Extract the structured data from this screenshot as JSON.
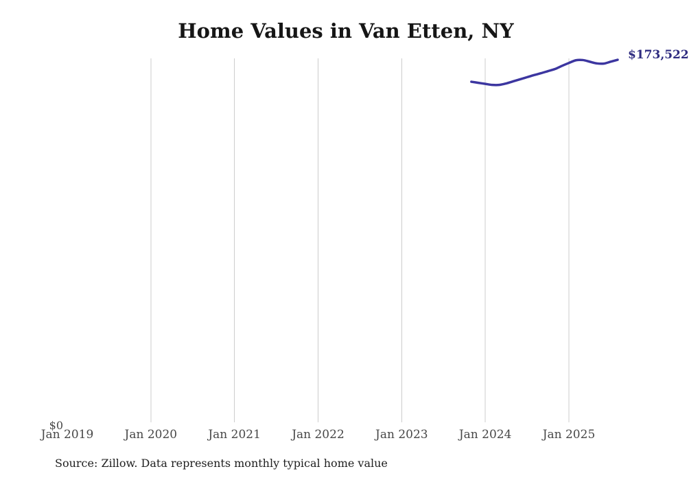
{
  "source_note": "Source: Zillow. Data represents monthly typical home value",
  "chart_data": {
    "type": "line",
    "title": "Home Values in Van Etten, NY",
    "x_axis": {
      "tick_labels": [
        "Jan 2019",
        "Jan 2020",
        "Jan 2021",
        "Jan 2022",
        "Jan 2023",
        "Jan 2024",
        "Jan 2025"
      ],
      "tick_years": [
        2019,
        2020,
        2021,
        2022,
        2023,
        2024,
        2025
      ],
      "gridline_years": [
        2020,
        2021,
        2022,
        2023,
        2024,
        2025
      ],
      "gridline_color": "#cccccc",
      "range_years": [
        2019,
        2026.25
      ]
    },
    "y_axis": {
      "min": 0,
      "max": 174200,
      "zero_label": "$0",
      "grid": false
    },
    "series": [
      {
        "name": "Typical home value",
        "color": "#3c36a0",
        "line_width": 3.5,
        "months": [
          "2023-11",
          "2023-12",
          "2024-01",
          "2024-02",
          "2024-03",
          "2024-04",
          "2024-05",
          "2024-06",
          "2024-07",
          "2024-08",
          "2024-09",
          "2024-10",
          "2024-11",
          "2024-12",
          "2025-01",
          "2025-02",
          "2025-03",
          "2025-04",
          "2025-05",
          "2025-06",
          "2025-07",
          "2025-08"
        ],
        "values": [
          163000,
          162500,
          162000,
          161500,
          161500,
          162200,
          163200,
          164200,
          165200,
          166200,
          167100,
          168100,
          169100,
          170600,
          172000,
          173300,
          173400,
          172600,
          171800,
          171700,
          172600,
          173522
        ]
      }
    ],
    "end_label": {
      "text": "$173,522",
      "color": "#2e2b80"
    },
    "legend_position": "none",
    "grid": "vertical-only"
  }
}
